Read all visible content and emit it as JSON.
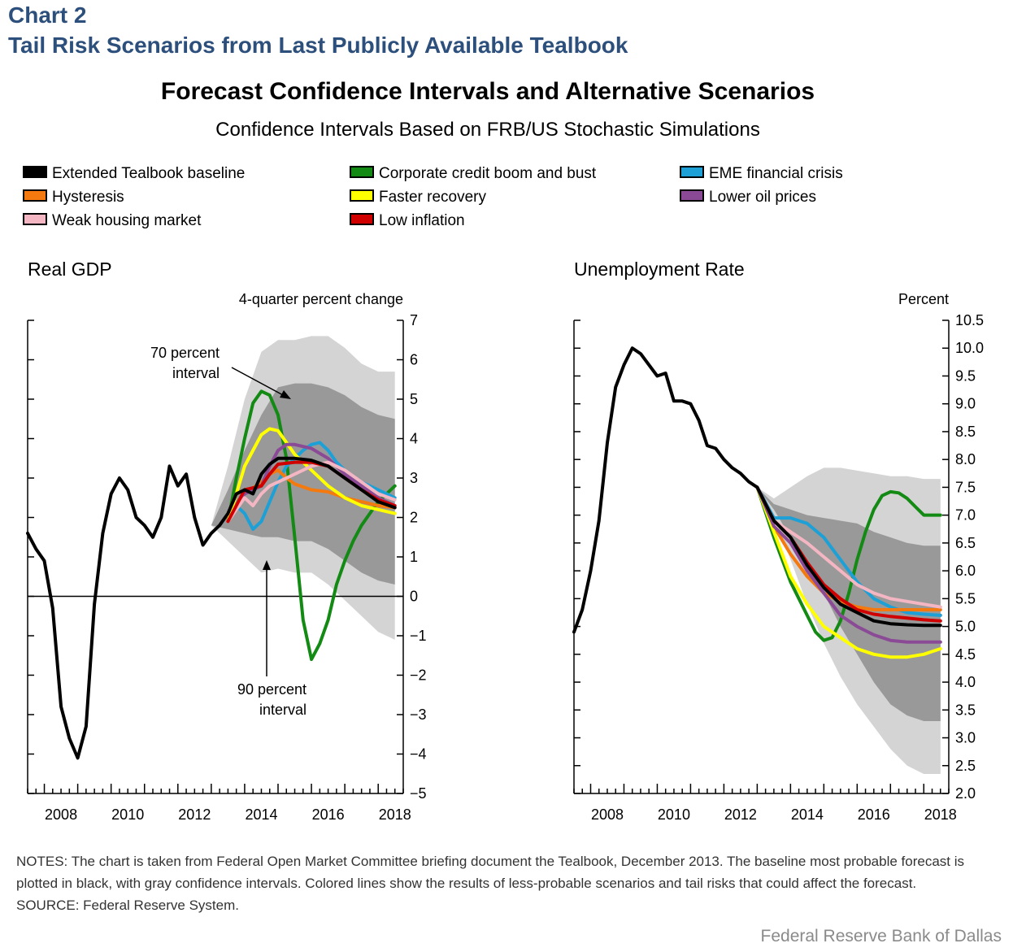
{
  "header": {
    "chart_number": "Chart 2",
    "chart_title": "Tail Risk Scenarios from Last Publicly Available Tealbook"
  },
  "title": "Forecast Confidence Intervals and Alternative Scenarios",
  "subtitle": "Confidence Intervals Based on FRB/US Stochastic Simulations",
  "legend": [
    {
      "label": "Extended Tealbook baseline",
      "color": "#000000"
    },
    {
      "label": "Corporate credit boom and bust",
      "color": "#138a13"
    },
    {
      "label": "EME financial crisis",
      "color": "#1da0d6"
    },
    {
      "label": "Hysteresis",
      "color": "#f47a10"
    },
    {
      "label": "Faster recovery",
      "color": "#ffff00"
    },
    {
      "label": "Lower oil prices",
      "color": "#8b4a96"
    },
    {
      "label": "Weak housing market",
      "color": "#f4b6c2"
    },
    {
      "label": "Low inflation",
      "color": "#d00000"
    }
  ],
  "gdp": {
    "panel_title": "Real GDP",
    "unit_label": "4-quarter percent change",
    "annotation_70": [
      "70 percent",
      "interval"
    ],
    "annotation_90": [
      "90 percent",
      "interval"
    ]
  },
  "unemployment": {
    "panel_title": "Unemployment Rate",
    "unit_label": "Percent"
  },
  "notes": {
    "text": "NOTES: The chart is taken from Federal Open Market Committee briefing document the Tealbook, December 2013. The baseline most probable forecast is plotted in black, with gray confidence intervals. Colored lines show the results of less-probable scenarios and tail risks that could affect the forecast.",
    "source": "SOURCE: Federal Reserve System."
  },
  "credit": "Federal Reserve Bank of Dallas",
  "chart_data": [
    {
      "type": "line",
      "title": "Real GDP",
      "ylabel": "4-quarter percent change",
      "xlim": [
        2007.5,
        2018.75
      ],
      "ylim": [
        -5,
        7
      ],
      "yticks": [
        -5,
        -4,
        -3,
        -2,
        -1,
        0,
        1,
        2,
        3,
        4,
        5,
        6,
        7
      ],
      "ytick_labels": [
        "−5",
        "−4",
        "−3",
        "−2",
        "−1",
        "0",
        "1",
        "2",
        "3",
        "4",
        "5",
        "6",
        "7"
      ],
      "xtick_labels": [
        "2008",
        "2010",
        "2012",
        "2014",
        "2016",
        "2018"
      ],
      "zero_line": true,
      "bands": {
        "x": [
          2013.0,
          2013.5,
          2014.0,
          2014.5,
          2015.0,
          2015.5,
          2016.0,
          2016.5,
          2017.0,
          2017.5,
          2018.0,
          2018.5
        ],
        "p90_low": [
          1.8,
          1.4,
          1.0,
          0.6,
          0.7,
          0.6,
          0.6,
          0.3,
          -0.1,
          -0.5,
          -0.9,
          -1.1
        ],
        "p70_low": [
          1.8,
          1.7,
          1.6,
          1.5,
          1.5,
          1.4,
          1.4,
          1.2,
          0.9,
          0.6,
          0.4,
          0.3
        ],
        "p70_high": [
          1.8,
          2.7,
          3.7,
          4.6,
          5.3,
          5.4,
          5.4,
          5.3,
          5.1,
          4.8,
          4.6,
          4.5
        ],
        "p90_high": [
          1.8,
          3.3,
          5.0,
          6.2,
          6.5,
          6.5,
          6.6,
          6.6,
          6.3,
          5.9,
          5.7,
          5.7
        ]
      },
      "series": [
        {
          "name": "Extended Tealbook baseline",
          "color": "#000000",
          "x": [
            2007.5,
            2007.75,
            2008.0,
            2008.25,
            2008.5,
            2008.75,
            2009.0,
            2009.25,
            2009.5,
            2009.75,
            2010.0,
            2010.25,
            2010.5,
            2010.75,
            2011.0,
            2011.25,
            2011.5,
            2011.75,
            2012.0,
            2012.25,
            2012.5,
            2012.75,
            2013.0,
            2013.25,
            2013.5,
            2013.75,
            2014.0,
            2014.25,
            2014.5,
            2014.75,
            2015.0,
            2015.5,
            2016.0,
            2016.5,
            2017.0,
            2017.5,
            2018.0,
            2018.5
          ],
          "y": [
            1.6,
            1.2,
            0.9,
            -0.3,
            -2.8,
            -3.6,
            -4.1,
            -3.3,
            -0.2,
            1.6,
            2.6,
            3.0,
            2.7,
            2.0,
            1.8,
            1.5,
            2.0,
            3.3,
            2.8,
            3.1,
            2.0,
            1.3,
            1.6,
            1.8,
            2.1,
            2.6,
            2.7,
            2.6,
            3.1,
            3.35,
            3.5,
            3.5,
            3.45,
            3.3,
            3.0,
            2.7,
            2.4,
            2.25
          ]
        },
        {
          "name": "Corporate credit boom and bust",
          "color": "#138a13",
          "x": [
            2013.5,
            2013.75,
            2014.0,
            2014.25,
            2014.5,
            2014.75,
            2015.0,
            2015.25,
            2015.5,
            2015.75,
            2016.0,
            2016.25,
            2016.5,
            2016.75,
            2017.0,
            2017.25,
            2017.5,
            2017.75,
            2018.0,
            2018.25,
            2018.5
          ],
          "y": [
            1.9,
            3.0,
            4.0,
            4.9,
            5.2,
            5.1,
            4.6,
            3.5,
            1.5,
            -0.6,
            -1.6,
            -1.2,
            -0.6,
            0.3,
            0.9,
            1.4,
            1.8,
            2.1,
            2.4,
            2.6,
            2.8
          ]
        },
        {
          "name": "EME financial crisis",
          "color": "#1da0d6",
          "x": [
            2013.5,
            2013.75,
            2014.0,
            2014.25,
            2014.5,
            2014.75,
            2015.0,
            2015.25,
            2015.5,
            2015.75,
            2016.0,
            2016.25,
            2016.5,
            2016.75,
            2017.0,
            2017.5,
            2018.0,
            2018.5
          ],
          "y": [
            1.9,
            2.3,
            2.1,
            1.7,
            1.9,
            2.4,
            2.9,
            3.3,
            3.5,
            3.7,
            3.85,
            3.9,
            3.7,
            3.4,
            3.2,
            2.9,
            2.7,
            2.5
          ]
        },
        {
          "name": "Hysteresis",
          "color": "#f47a10",
          "x": [
            2013.5,
            2014.0,
            2014.5,
            2014.75,
            2015.0,
            2015.25,
            2015.5,
            2016.0,
            2016.5,
            2017.0,
            2017.5,
            2018.0,
            2018.5
          ],
          "y": [
            1.9,
            2.6,
            2.9,
            3.1,
            3.2,
            3.0,
            2.85,
            2.7,
            2.65,
            2.5,
            2.4,
            2.3,
            2.25
          ]
        },
        {
          "name": "Faster recovery",
          "color": "#ffff00",
          "x": [
            2013.5,
            2013.75,
            2014.0,
            2014.25,
            2014.5,
            2014.75,
            2015.0,
            2015.25,
            2015.5,
            2016.0,
            2016.5,
            2017.0,
            2017.5,
            2018.0,
            2018.5
          ],
          "y": [
            1.9,
            2.6,
            3.3,
            3.7,
            4.1,
            4.25,
            4.2,
            3.9,
            3.6,
            3.2,
            2.8,
            2.5,
            2.3,
            2.2,
            2.1
          ]
        },
        {
          "name": "Lower oil prices",
          "color": "#8b4a96",
          "x": [
            2013.5,
            2014.0,
            2014.5,
            2014.75,
            2015.0,
            2015.25,
            2015.5,
            2016.0,
            2016.5,
            2017.0,
            2017.5,
            2018.0,
            2018.5
          ],
          "y": [
            1.9,
            2.6,
            2.8,
            3.3,
            3.7,
            3.85,
            3.85,
            3.75,
            3.5,
            3.1,
            2.8,
            2.5,
            2.3
          ]
        },
        {
          "name": "Weak housing market",
          "color": "#f4b6c2",
          "x": [
            2013.5,
            2014.0,
            2014.25,
            2014.5,
            2014.75,
            2015.0,
            2015.5,
            2016.0,
            2016.5,
            2017.0,
            2017.5,
            2018.0,
            2018.5
          ],
          "y": [
            1.9,
            2.5,
            2.3,
            2.6,
            2.8,
            2.9,
            3.1,
            3.3,
            3.4,
            3.2,
            2.9,
            2.6,
            2.45
          ]
        },
        {
          "name": "Low inflation",
          "color": "#d00000",
          "x": [
            2013.5,
            2014.0,
            2014.5,
            2014.75,
            2015.0,
            2015.5,
            2016.0,
            2016.5,
            2017.0,
            2017.5,
            2018.0,
            2018.5
          ],
          "y": [
            1.9,
            2.7,
            2.8,
            3.1,
            3.35,
            3.4,
            3.4,
            3.3,
            3.0,
            2.7,
            2.45,
            2.3
          ]
        }
      ]
    },
    {
      "type": "line",
      "title": "Unemployment Rate",
      "ylabel": "Percent",
      "xlim": [
        2007.5,
        2018.75
      ],
      "ylim": [
        2.0,
        10.5
      ],
      "yticks": [
        2.0,
        2.5,
        3.0,
        3.5,
        4.0,
        4.5,
        5.0,
        5.5,
        6.0,
        6.5,
        7.0,
        7.5,
        8.0,
        8.5,
        9.0,
        9.5,
        10.0,
        10.5
      ],
      "ytick_labels": [
        "2.0",
        "2.5",
        "3.0",
        "3.5",
        "4.0",
        "4.5",
        "5.0",
        "5.5",
        "6.0",
        "6.5",
        "7.0",
        "7.5",
        "8.0",
        "8.5",
        "9.0",
        "9.5",
        "10.0",
        "10.5"
      ],
      "xtick_labels": [
        "2008",
        "2010",
        "2012",
        "2014",
        "2016",
        "2018"
      ],
      "bands": {
        "x": [
          2013.0,
          2013.5,
          2014.0,
          2014.5,
          2015.0,
          2015.5,
          2016.0,
          2016.5,
          2017.0,
          2017.5,
          2018.0,
          2018.5
        ],
        "p90_low": [
          7.5,
          7.0,
          6.2,
          5.4,
          4.7,
          4.1,
          3.6,
          3.2,
          2.8,
          2.5,
          2.35,
          2.35
        ],
        "p70_low": [
          7.5,
          7.1,
          6.6,
          6.1,
          5.6,
          5.0,
          4.5,
          4.0,
          3.6,
          3.4,
          3.3,
          3.3
        ],
        "p70_high": [
          7.5,
          7.2,
          7.1,
          7.0,
          6.95,
          6.9,
          6.85,
          6.7,
          6.6,
          6.5,
          6.45,
          6.45
        ],
        "p90_high": [
          7.5,
          7.3,
          7.5,
          7.7,
          7.85,
          7.85,
          7.8,
          7.75,
          7.7,
          7.7,
          7.65,
          7.65
        ]
      },
      "series": [
        {
          "name": "Extended Tealbook baseline",
          "color": "#000000",
          "x": [
            2007.5,
            2007.75,
            2008.0,
            2008.25,
            2008.5,
            2008.75,
            2009.0,
            2009.25,
            2009.5,
            2009.75,
            2010.0,
            2010.25,
            2010.5,
            2010.75,
            2011.0,
            2011.25,
            2011.5,
            2011.75,
            2012.0,
            2012.25,
            2012.5,
            2012.75,
            2013.0,
            2013.5,
            2014.0,
            2014.5,
            2015.0,
            2015.5,
            2016.0,
            2016.5,
            2017.0,
            2017.5,
            2018.0,
            2018.5
          ],
          "y": [
            4.9,
            5.3,
            6.0,
            6.9,
            8.3,
            9.3,
            9.7,
            10.0,
            9.9,
            9.7,
            9.5,
            9.55,
            9.05,
            9.05,
            9.0,
            8.7,
            8.25,
            8.2,
            8.0,
            7.85,
            7.75,
            7.6,
            7.5,
            6.9,
            6.6,
            6.1,
            5.7,
            5.4,
            5.25,
            5.1,
            5.05,
            5.03,
            5.02,
            5.02
          ]
        },
        {
          "name": "Corporate credit boom and bust",
          "color": "#138a13",
          "x": [
            2013.0,
            2013.5,
            2014.0,
            2014.5,
            2014.75,
            2015.0,
            2015.25,
            2015.5,
            2015.75,
            2016.0,
            2016.25,
            2016.5,
            2016.75,
            2017.0,
            2017.25,
            2017.5,
            2017.75,
            2018.0,
            2018.5
          ],
          "y": [
            7.5,
            6.6,
            5.8,
            5.2,
            4.9,
            4.75,
            4.8,
            5.1,
            5.6,
            6.2,
            6.7,
            7.1,
            7.35,
            7.42,
            7.4,
            7.3,
            7.15,
            7.0,
            7.0
          ]
        },
        {
          "name": "EME financial crisis",
          "color": "#1da0d6",
          "x": [
            2013.0,
            2013.5,
            2014.0,
            2014.5,
            2015.0,
            2015.5,
            2016.0,
            2016.5,
            2017.0,
            2017.5,
            2018.0,
            2018.5
          ],
          "y": [
            7.5,
            6.95,
            6.95,
            6.85,
            6.6,
            6.2,
            5.8,
            5.5,
            5.35,
            5.25,
            5.22,
            5.2
          ]
        },
        {
          "name": "Hysteresis",
          "color": "#f47a10",
          "x": [
            2013.0,
            2013.5,
            2014.0,
            2014.5,
            2015.0,
            2015.5,
            2016.0,
            2016.5,
            2017.0,
            2017.5,
            2018.0,
            2018.5
          ],
          "y": [
            7.5,
            6.8,
            6.3,
            5.9,
            5.6,
            5.45,
            5.35,
            5.3,
            5.3,
            5.3,
            5.3,
            5.3
          ]
        },
        {
          "name": "Faster recovery",
          "color": "#ffff00",
          "x": [
            2013.0,
            2013.5,
            2014.0,
            2014.5,
            2015.0,
            2015.5,
            2016.0,
            2016.5,
            2017.0,
            2017.5,
            2018.0,
            2018.5
          ],
          "y": [
            7.5,
            6.7,
            5.9,
            5.4,
            5.0,
            4.8,
            4.6,
            4.5,
            4.45,
            4.45,
            4.5,
            4.6
          ]
        },
        {
          "name": "Lower oil prices",
          "color": "#8b4a96",
          "x": [
            2013.0,
            2013.5,
            2014.0,
            2014.5,
            2015.0,
            2015.5,
            2016.0,
            2016.5,
            2017.0,
            2017.5,
            2018.0,
            2018.5
          ],
          "y": [
            7.5,
            6.8,
            6.5,
            6.0,
            5.6,
            5.2,
            5.0,
            4.85,
            4.75,
            4.72,
            4.72,
            4.72
          ]
        },
        {
          "name": "Weak housing market",
          "color": "#f4b6c2",
          "x": [
            2013.0,
            2013.5,
            2014.0,
            2014.5,
            2015.0,
            2015.5,
            2016.0,
            2016.5,
            2017.0,
            2017.5,
            2018.0,
            2018.5
          ],
          "y": [
            7.5,
            6.9,
            6.7,
            6.5,
            6.25,
            6.0,
            5.75,
            5.6,
            5.5,
            5.45,
            5.4,
            5.35
          ]
        },
        {
          "name": "Low inflation",
          "color": "#d00000",
          "x": [
            2013.0,
            2013.5,
            2014.0,
            2014.5,
            2015.0,
            2015.5,
            2016.0,
            2016.5,
            2017.0,
            2017.5,
            2018.0,
            2018.5
          ],
          "y": [
            7.5,
            6.9,
            6.6,
            6.15,
            5.75,
            5.5,
            5.3,
            5.22,
            5.18,
            5.15,
            5.12,
            5.1
          ]
        }
      ]
    }
  ]
}
